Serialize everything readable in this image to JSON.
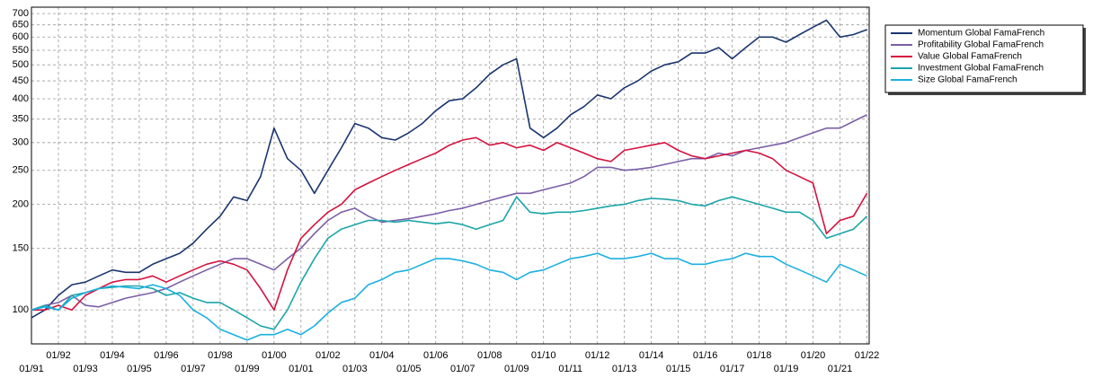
{
  "chart_data": {
    "type": "line",
    "log_y": true,
    "grid": true,
    "legend": "outside-right",
    "x": [
      "1991-01",
      "1991-07",
      "1992-01",
      "1992-07",
      "1993-01",
      "1993-07",
      "1994-01",
      "1994-07",
      "1995-01",
      "1995-07",
      "1996-01",
      "1996-07",
      "1997-01",
      "1997-07",
      "1998-01",
      "1998-07",
      "1999-01",
      "1999-07",
      "2000-01",
      "2000-07",
      "2001-01",
      "2001-07",
      "2002-01",
      "2002-07",
      "2003-01",
      "2003-07",
      "2004-01",
      "2004-07",
      "2005-01",
      "2005-07",
      "2006-01",
      "2006-07",
      "2007-01",
      "2007-07",
      "2008-01",
      "2008-07",
      "2009-01",
      "2009-07",
      "2010-01",
      "2010-07",
      "2011-01",
      "2011-07",
      "2012-01",
      "2012-07",
      "2013-01",
      "2013-07",
      "2014-01",
      "2014-07",
      "2015-01",
      "2015-07",
      "2016-01",
      "2016-07",
      "2017-01",
      "2017-07",
      "2018-01",
      "2018-07",
      "2019-01",
      "2019-07",
      "2020-01",
      "2020-07",
      "2021-01",
      "2021-07",
      "2022-01"
    ],
    "series": [
      {
        "name": "Momentum Global FamaFrench",
        "color": "#1b3570",
        "values": [
          95,
          100,
          110,
          118,
          120,
          125,
          130,
          128,
          128,
          135,
          140,
          145,
          155,
          170,
          185,
          210,
          205,
          240,
          330,
          270,
          250,
          215,
          250,
          290,
          340,
          330,
          310,
          305,
          320,
          340,
          370,
          395,
          400,
          430,
          470,
          500,
          520,
          330,
          310,
          330,
          360,
          380,
          410,
          400,
          430,
          450,
          480,
          500,
          510,
          540,
          540,
          560,
          520,
          560,
          600,
          600,
          580,
          610,
          640,
          670,
          600,
          610,
          630
        ]
      },
      {
        "name": "Profitability Global FamaFrench",
        "color": "#7b5ea7",
        "values": [
          100,
          103,
          105,
          110,
          103,
          102,
          105,
          108,
          110,
          112,
          115,
          120,
          125,
          130,
          135,
          140,
          140,
          135,
          130,
          140,
          150,
          165,
          180,
          190,
          195,
          185,
          178,
          180,
          182,
          185,
          188,
          192,
          195,
          200,
          205,
          210,
          215,
          215,
          220,
          225,
          230,
          240,
          255,
          255,
          250,
          252,
          255,
          260,
          265,
          270,
          270,
          280,
          275,
          285,
          290,
          295,
          300,
          310,
          320,
          330,
          330,
          345,
          360
        ]
      },
      {
        "name": "Value Global FamaFrench",
        "color": "#d4123f",
        "values": [
          100,
          100,
          103,
          100,
          110,
          115,
          120,
          122,
          122,
          125,
          120,
          125,
          130,
          135,
          138,
          135,
          130,
          115,
          100,
          130,
          160,
          175,
          190,
          200,
          220,
          230,
          240,
          250,
          260,
          270,
          280,
          295,
          305,
          310,
          295,
          300,
          290,
          295,
          285,
          300,
          290,
          280,
          270,
          265,
          285,
          290,
          295,
          300,
          285,
          275,
          270,
          275,
          280,
          285,
          280,
          270,
          250,
          240,
          230,
          165,
          180,
          185,
          215
        ]
      },
      {
        "name": "Investment Global FamaFrench",
        "color": "#1aa5a8",
        "values": [
          100,
          103,
          100,
          110,
          112,
          115,
          116,
          117,
          117,
          115,
          110,
          112,
          108,
          105,
          105,
          100,
          95,
          90,
          88,
          100,
          120,
          140,
          160,
          170,
          175,
          180,
          180,
          178,
          180,
          178,
          176,
          178,
          175,
          170,
          175,
          180,
          210,
          190,
          188,
          190,
          190,
          192,
          195,
          198,
          200,
          205,
          208,
          207,
          205,
          200,
          198,
          205,
          210,
          205,
          200,
          195,
          190,
          190,
          180,
          160,
          165,
          170,
          185
        ]
      },
      {
        "name": "Size Global FamaFrench",
        "color": "#1ab0e0",
        "values": [
          100,
          102,
          100,
          108,
          112,
          115,
          117,
          116,
          115,
          118,
          115,
          110,
          100,
          95,
          88,
          85,
          82,
          85,
          85,
          88,
          85,
          90,
          98,
          105,
          108,
          118,
          122,
          128,
          130,
          135,
          140,
          140,
          138,
          135,
          130,
          128,
          122,
          128,
          130,
          135,
          140,
          142,
          145,
          140,
          140,
          142,
          145,
          140,
          140,
          135,
          135,
          138,
          140,
          145,
          142,
          142,
          135,
          130,
          125,
          120,
          135,
          130,
          125
        ]
      }
    ],
    "xlim": [
      "1991-01",
      "2022-02"
    ],
    "xticks": [
      {
        "value": "1991-01",
        "label": "01/91"
      },
      {
        "value": "1992-01",
        "label": "01/92"
      },
      {
        "value": "1993-01",
        "label": "01/93"
      },
      {
        "value": "1994-01",
        "label": "01/94"
      },
      {
        "value": "1995-01",
        "label": "01/95"
      },
      {
        "value": "1996-01",
        "label": "01/96"
      },
      {
        "value": "1997-01",
        "label": "01/97"
      },
      {
        "value": "1998-01",
        "label": "01/98"
      },
      {
        "value": "1999-01",
        "label": "01/99"
      },
      {
        "value": "2000-01",
        "label": "01/00"
      },
      {
        "value": "2001-01",
        "label": "01/01"
      },
      {
        "value": "2002-01",
        "label": "01/02"
      },
      {
        "value": "2003-01",
        "label": "01/03"
      },
      {
        "value": "2004-01",
        "label": "01/04"
      },
      {
        "value": "2005-01",
        "label": "01/05"
      },
      {
        "value": "2006-01",
        "label": "01/06"
      },
      {
        "value": "2007-01",
        "label": "01/07"
      },
      {
        "value": "2008-01",
        "label": "01/08"
      },
      {
        "value": "2009-01",
        "label": "01/09"
      },
      {
        "value": "2010-01",
        "label": "01/10"
      },
      {
        "value": "2011-01",
        "label": "01/11"
      },
      {
        "value": "2012-01",
        "label": "01/12"
      },
      {
        "value": "2013-01",
        "label": "01/13"
      },
      {
        "value": "2014-01",
        "label": "01/14"
      },
      {
        "value": "2015-01",
        "label": "01/15"
      },
      {
        "value": "2016-01",
        "label": "01/16"
      },
      {
        "value": "2017-01",
        "label": "01/17"
      },
      {
        "value": "2018-01",
        "label": "01/18"
      },
      {
        "value": "2019-01",
        "label": "01/19"
      },
      {
        "value": "2020-01",
        "label": "01/20"
      },
      {
        "value": "2021-01",
        "label": "01/21"
      },
      {
        "value": "2022-01",
        "label": "01/22"
      }
    ],
    "ylim": [
      80,
      730
    ],
    "yticks": [
      100,
      150,
      200,
      250,
      300,
      350,
      400,
      450,
      500,
      550,
      600,
      650,
      700
    ]
  }
}
